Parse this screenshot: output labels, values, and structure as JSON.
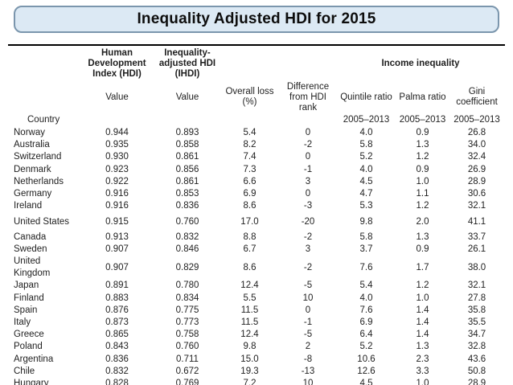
{
  "title": "Inequality Adjusted HDI for 2015",
  "table": {
    "col_headers": {
      "country": "Country",
      "hdi_group": "Human\nDevelopment\nIndex (HDI)",
      "ihdi_group": "Inequality-\nadjusted HDI\n(IHDI)",
      "income_inequality_group": "Income inequality",
      "hdi_value": "Value",
      "ihdi_value": "Value",
      "overall_loss": "Overall loss\n(%)",
      "difference": "Difference\nfrom HDI rank",
      "quintile_ratio": "Quintile ratio",
      "palma_ratio": "Palma ratio",
      "gini_coefficient": "Gini\ncoefficient",
      "period": "2005–2013"
    },
    "rows": [
      [
        "Norway",
        "0.944",
        "0.893",
        "5.4",
        "0",
        "4.0",
        "0.9",
        "26.8"
      ],
      [
        "Australia",
        "0.935",
        "0.858",
        "8.2",
        "-2",
        "5.8",
        "1.3",
        "34.0"
      ],
      [
        "Switzerland",
        "0.930",
        "0.861",
        "7.4",
        "0",
        "5.2",
        "1.2",
        "32.4"
      ],
      [
        "Denmark",
        "0.923",
        "0.856",
        "7.3",
        "-1",
        "4.0",
        "0.9",
        "26.9"
      ],
      [
        "Netherlands",
        "0.922",
        "0.861",
        "6.6",
        "3",
        "4.5",
        "1.0",
        "28.9"
      ],
      [
        "Germany",
        "0.916",
        "0.853",
        "6.9",
        "0",
        "4.7",
        "1.1",
        "30.6"
      ],
      [
        "Ireland",
        "0.916",
        "0.836",
        "8.6",
        "-3",
        "5.3",
        "1.2",
        "32.1"
      ],
      [
        "United States",
        "0.915",
        "0.760",
        "17.0",
        "-20",
        "9.8",
        "2.0",
        "41.1"
      ],
      [
        "Canada",
        "0.913",
        "0.832",
        "8.8",
        "-2",
        "5.8",
        "1.3",
        "33.7"
      ],
      [
        "Sweden",
        "0.907",
        "0.846",
        "6.7",
        "3",
        "3.7",
        "0.9",
        "26.1"
      ],
      [
        "United\nKingdom",
        "0.907",
        "0.829",
        "8.6",
        "-2",
        "7.6",
        "1.7",
        "38.0"
      ],
      [
        "Japan",
        "0.891",
        "0.780",
        "12.4",
        "-5",
        "5.4",
        "1.2",
        "32.1"
      ],
      [
        "Finland",
        "0.883",
        "0.834",
        "5.5",
        "10",
        "4.0",
        "1.0",
        "27.8"
      ],
      [
        "Spain",
        "0.876",
        "0.775",
        "11.5",
        "0",
        "7.6",
        "1.4",
        "35.8"
      ],
      [
        "Italy",
        "0.873",
        "0.773",
        "11.5",
        "-1",
        "6.9",
        "1.4",
        "35.5"
      ],
      [
        "Greece",
        "0.865",
        "0.758",
        "12.4",
        "-5",
        "6.4",
        "1.4",
        "34.7"
      ],
      [
        "Poland",
        "0.843",
        "0.760",
        "9.8",
        "2",
        "5.2",
        "1.3",
        "32.8"
      ],
      [
        "Argentina",
        "0.836",
        "0.711",
        "15.0",
        "-8",
        "10.6",
        "2.3",
        "43.6"
      ],
      [
        "Chile",
        "0.832",
        "0.672",
        "19.3",
        "-13",
        "12.6",
        "3.3",
        "50.8"
      ],
      [
        "Hungary",
        "0.828",
        "0.769",
        "7.2",
        "10",
        "4.5",
        "1.0",
        "28.9"
      ]
    ]
  },
  "colors": {
    "banner_fill": "#dce9f4",
    "banner_border": "#7b96ad",
    "rule": "#000000",
    "text": "#1f1f1f"
  }
}
